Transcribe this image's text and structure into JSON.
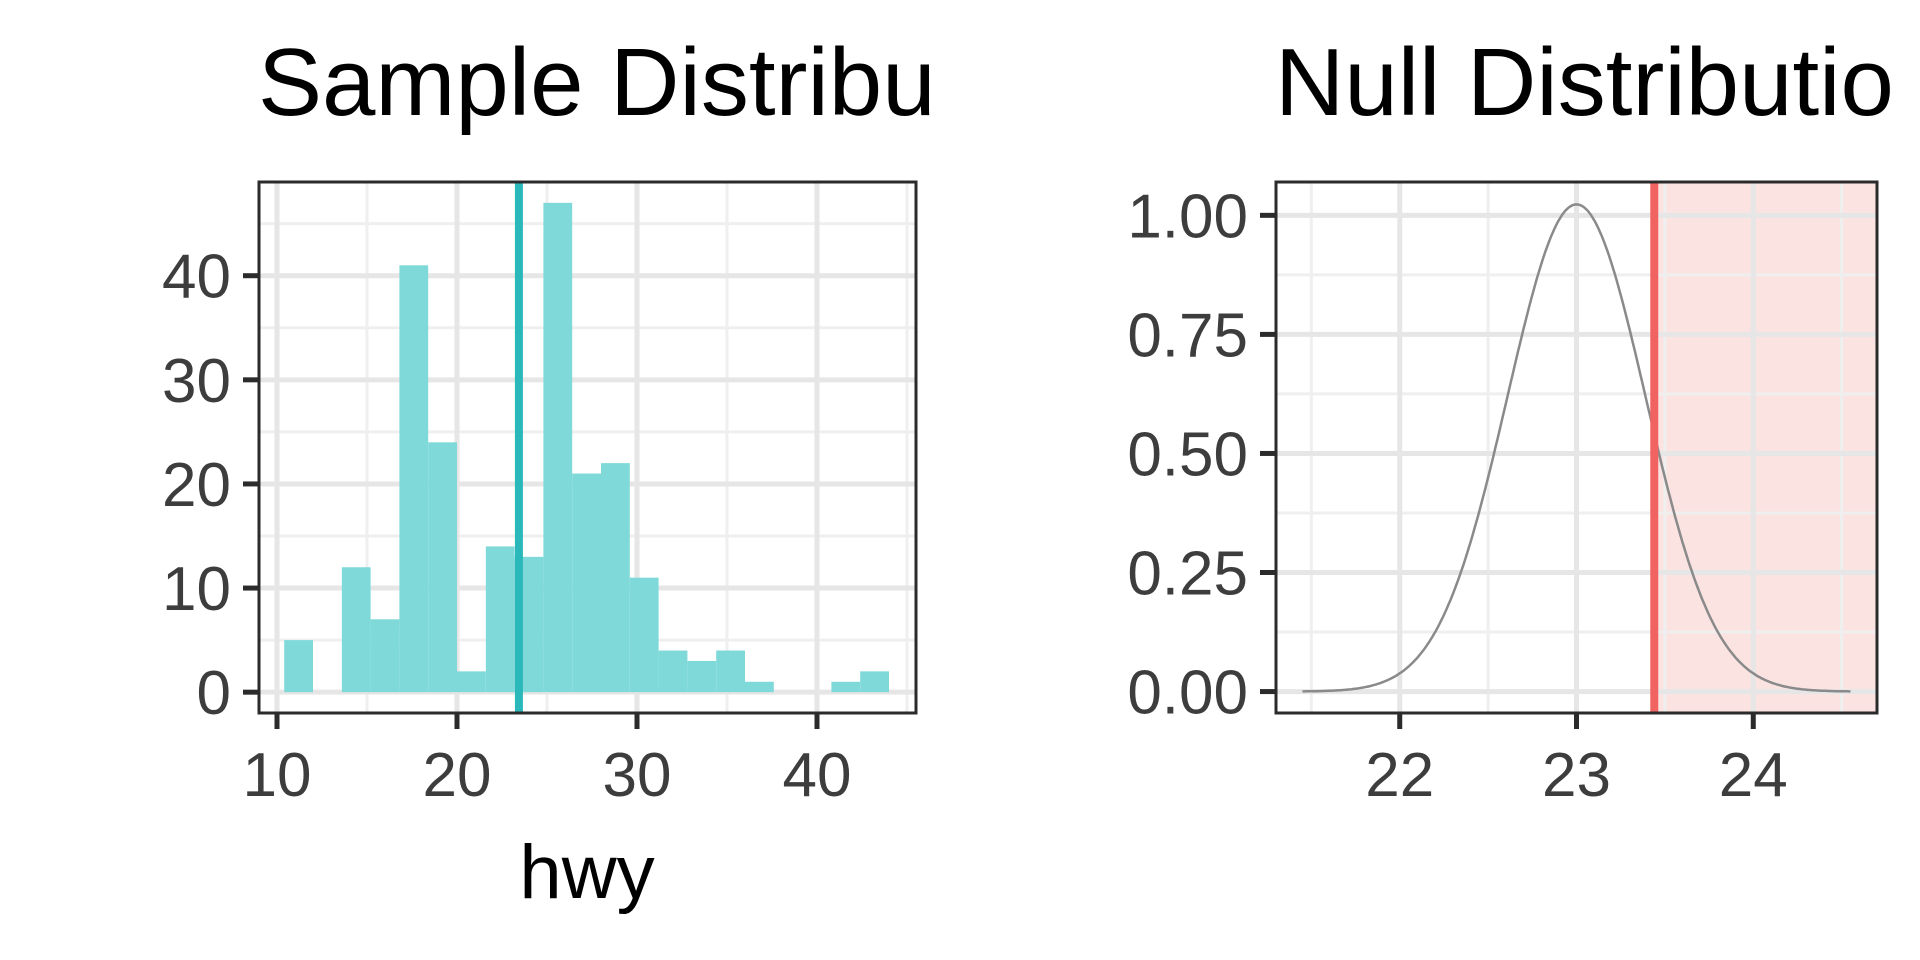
{
  "chart_data": [
    {
      "type": "bar",
      "title": "Sample Distribu",
      "xlabel": "hwy",
      "ylabel": "",
      "xlim": [
        9.0,
        45.5
      ],
      "ylim": [
        -2.0,
        49.0
      ],
      "x_ticks": [
        10,
        20,
        30,
        40
      ],
      "y_ticks": [
        0,
        10,
        20,
        30,
        40
      ],
      "grid": true,
      "bin_width": 1.6,
      "bins": [
        {
          "x0": 10.4,
          "x1": 12.0,
          "count": 5
        },
        {
          "x0": 12.0,
          "x1": 13.6,
          "count": 0
        },
        {
          "x0": 13.6,
          "x1": 15.2,
          "count": 12
        },
        {
          "x0": 15.2,
          "x1": 16.8,
          "count": 7
        },
        {
          "x0": 16.8,
          "x1": 18.4,
          "count": 41
        },
        {
          "x0": 18.4,
          "x1": 20.0,
          "count": 24
        },
        {
          "x0": 20.0,
          "x1": 21.6,
          "count": 2
        },
        {
          "x0": 21.6,
          "x1": 23.2,
          "count": 14
        },
        {
          "x0": 23.2,
          "x1": 24.8,
          "count": 13
        },
        {
          "x0": 24.8,
          "x1": 26.4,
          "count": 47
        },
        {
          "x0": 26.4,
          "x1": 28.0,
          "count": 21
        },
        {
          "x0": 28.0,
          "x1": 29.6,
          "count": 22
        },
        {
          "x0": 29.6,
          "x1": 31.2,
          "count": 11
        },
        {
          "x0": 31.2,
          "x1": 32.8,
          "count": 4
        },
        {
          "x0": 32.8,
          "x1": 34.4,
          "count": 3
        },
        {
          "x0": 34.4,
          "x1": 36.0,
          "count": 4
        },
        {
          "x0": 36.0,
          "x1": 37.6,
          "count": 1
        },
        {
          "x0": 37.6,
          "x1": 39.2,
          "count": 0
        },
        {
          "x0": 39.2,
          "x1": 40.8,
          "count": 0
        },
        {
          "x0": 40.8,
          "x1": 42.4,
          "count": 1
        },
        {
          "x0": 42.4,
          "x1": 44.0,
          "count": 2
        }
      ],
      "vline": 23.44,
      "colors": {
        "bar": "#80d9d9",
        "vline": "#2bb8bb"
      }
    },
    {
      "type": "line",
      "title": "Null Distributio",
      "xlabel": "",
      "ylabel": "",
      "xlim": [
        21.3,
        24.7
      ],
      "ylim": [
        -0.045,
        1.07
      ],
      "x_ticks": [
        22,
        23,
        24
      ],
      "y_ticks": [
        0.0,
        0.25,
        0.5,
        0.75,
        1.0
      ],
      "grid": true,
      "curve": {
        "distribution": "normal",
        "mean": 23.0,
        "sd": 0.39,
        "x_range": [
          21.45,
          24.55
        ]
      },
      "vline": 23.44,
      "shade_from": 23.44,
      "colors": {
        "curve": "#8a8a8a",
        "vline": "#f06360",
        "shade": "#fbe3e2"
      }
    }
  ],
  "colors": {
    "panel_border": "#2b2b2b",
    "grid_major": "#e6e6e6",
    "grid_minor": "#efefef",
    "tick": "#2b2b2b"
  }
}
